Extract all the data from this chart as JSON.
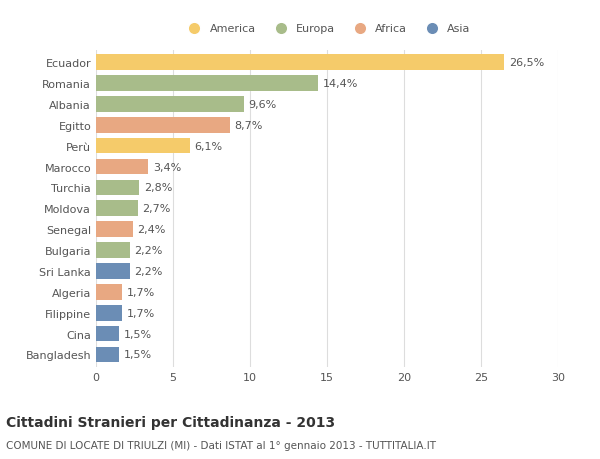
{
  "countries": [
    "Ecuador",
    "Romania",
    "Albania",
    "Egitto",
    "Perù",
    "Marocco",
    "Turchia",
    "Moldova",
    "Senegal",
    "Bulgaria",
    "Sri Lanka",
    "Algeria",
    "Filippine",
    "Cina",
    "Bangladesh"
  ],
  "values": [
    26.5,
    14.4,
    9.6,
    8.7,
    6.1,
    3.4,
    2.8,
    2.7,
    2.4,
    2.2,
    2.2,
    1.7,
    1.7,
    1.5,
    1.5
  ],
  "labels": [
    "26,5%",
    "14,4%",
    "9,6%",
    "8,7%",
    "6,1%",
    "3,4%",
    "2,8%",
    "2,7%",
    "2,4%",
    "2,2%",
    "2,2%",
    "1,7%",
    "1,7%",
    "1,5%",
    "1,5%"
  ],
  "colors": [
    "#F5CB6A",
    "#A8BC8A",
    "#A8BC8A",
    "#E8A882",
    "#F5CB6A",
    "#E8A882",
    "#A8BC8A",
    "#A8BC8A",
    "#E8A882",
    "#A8BC8A",
    "#6B8DB5",
    "#E8A882",
    "#6B8DB5",
    "#6B8DB5",
    "#6B8DB5"
  ],
  "legend_labels": [
    "America",
    "Europa",
    "Africa",
    "Asia"
  ],
  "legend_colors": [
    "#F5CB6A",
    "#A8BC8A",
    "#E8A882",
    "#6B8DB5"
  ],
  "xlim": [
    0,
    30
  ],
  "xticks": [
    0,
    5,
    10,
    15,
    20,
    25,
    30
  ],
  "title": "Cittadini Stranieri per Cittadinanza - 2013",
  "subtitle": "COMUNE DI LOCATE DI TRIULZI (MI) - Dati ISTAT al 1° gennaio 2013 - TUTTITALIA.IT",
  "bg_color": "#FFFFFF",
  "grid_color": "#DDDDDD",
  "bar_height": 0.75,
  "label_fontsize": 8,
  "tick_fontsize": 8,
  "title_fontsize": 10,
  "subtitle_fontsize": 7.5
}
